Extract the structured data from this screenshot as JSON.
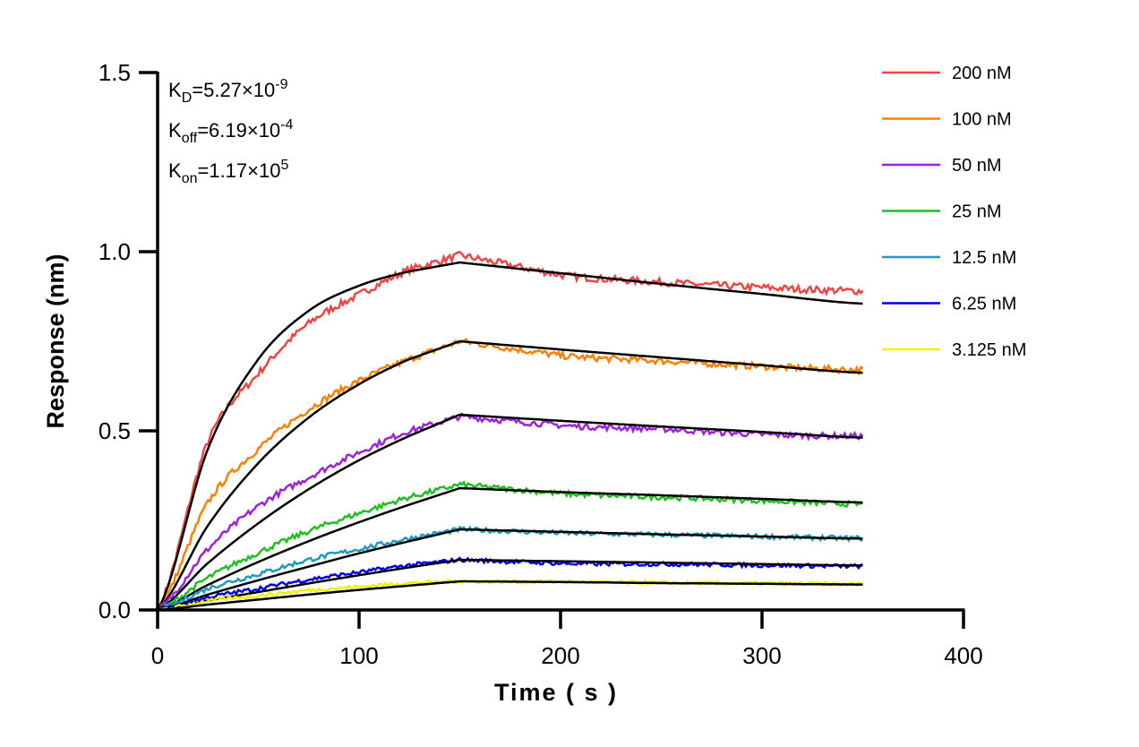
{
  "chart_data": {
    "type": "line",
    "xlabel": "Time ( s )",
    "ylabel": "Response (nm)",
    "xlim": [
      0,
      400
    ],
    "ylim": [
      0,
      1.5
    ],
    "xticks": [
      "0",
      "100",
      "200",
      "300",
      "400"
    ],
    "yticks": [
      "0.0",
      "0.5",
      "1.0",
      "1.5"
    ],
    "xtick_values": [
      0,
      100,
      200,
      300,
      400
    ],
    "ytick_values": [
      0,
      0.5,
      1.0,
      1.5
    ],
    "grid": false,
    "legend_position": "top-right",
    "annotations": [
      {
        "main": "K",
        "sub": "D",
        "rest": "=5.27×10",
        "sup": "-9"
      },
      {
        "main": "K",
        "sub": "off",
        "rest": "=6.19×10",
        "sup": "-4"
      },
      {
        "main": "K",
        "sub": "on",
        "rest": "=1.17×10",
        "sup": "5"
      }
    ],
    "fit_color": "#000000",
    "x": [
      0,
      25,
      50,
      75,
      100,
      125,
      150,
      200,
      250,
      300,
      350
    ],
    "series": [
      {
        "name": "200 nM",
        "color": "#f04545",
        "measured": [
          0,
          0.47,
          0.66,
          0.8,
          0.88,
          0.95,
          0.99,
          0.935,
          0.915,
          0.9,
          0.89
        ],
        "fit": [
          0,
          0.45,
          0.7,
          0.835,
          0.905,
          0.945,
          0.97,
          0.94,
          0.91,
          0.882,
          0.855
        ]
      },
      {
        "name": "100 nM",
        "color": "#ff8000",
        "measured": [
          0,
          0.3,
          0.45,
          0.56,
          0.64,
          0.7,
          0.75,
          0.71,
          0.695,
          0.68,
          0.67
        ],
        "fit": [
          0,
          0.236,
          0.41,
          0.537,
          0.63,
          0.7,
          0.75,
          0.727,
          0.705,
          0.683,
          0.662
        ]
      },
      {
        "name": "50 nM",
        "color": "#a020e0",
        "measured": [
          0,
          0.17,
          0.29,
          0.37,
          0.44,
          0.5,
          0.54,
          0.515,
          0.505,
          0.49,
          0.485
        ],
        "fit": [
          0,
          0.131,
          0.242,
          0.337,
          0.418,
          0.486,
          0.545,
          0.528,
          0.512,
          0.497,
          0.481
        ]
      },
      {
        "name": "25 nM",
        "color": "#20c020",
        "measured": [
          0,
          0.09,
          0.16,
          0.22,
          0.27,
          0.315,
          0.35,
          0.325,
          0.315,
          0.305,
          0.295
        ],
        "fit": [
          0,
          0.07,
          0.134,
          0.192,
          0.245,
          0.294,
          0.34,
          0.329,
          0.32,
          0.31,
          0.3
        ]
      },
      {
        "name": "12.5 nM",
        "color": "#1e9bbd",
        "measured": [
          0,
          0.06,
          0.1,
          0.14,
          0.17,
          0.2,
          0.225,
          0.215,
          0.21,
          0.205,
          0.2
        ],
        "fit": [
          0,
          0.043,
          0.083,
          0.121,
          0.158,
          0.192,
          0.225,
          0.218,
          0.211,
          0.205,
          0.199
        ]
      },
      {
        "name": "6.25 nM",
        "color": "#0000ee",
        "measured": [
          0,
          0.035,
          0.06,
          0.085,
          0.105,
          0.125,
          0.14,
          0.13,
          0.128,
          0.125,
          0.122
        ],
        "fit": [
          0,
          0.026,
          0.05,
          0.074,
          0.097,
          0.119,
          0.14,
          0.136,
          0.132,
          0.128,
          0.124
        ]
      },
      {
        "name": "3.125 nM",
        "color": "#f0f000",
        "measured": [
          0,
          0.025,
          0.04,
          0.055,
          0.065,
          0.075,
          0.08,
          0.078,
          0.076,
          0.074,
          0.072
        ],
        "fit": [
          0,
          0.015,
          0.029,
          0.043,
          0.056,
          0.068,
          0.08,
          0.078,
          0.075,
          0.073,
          0.071
        ]
      }
    ]
  }
}
